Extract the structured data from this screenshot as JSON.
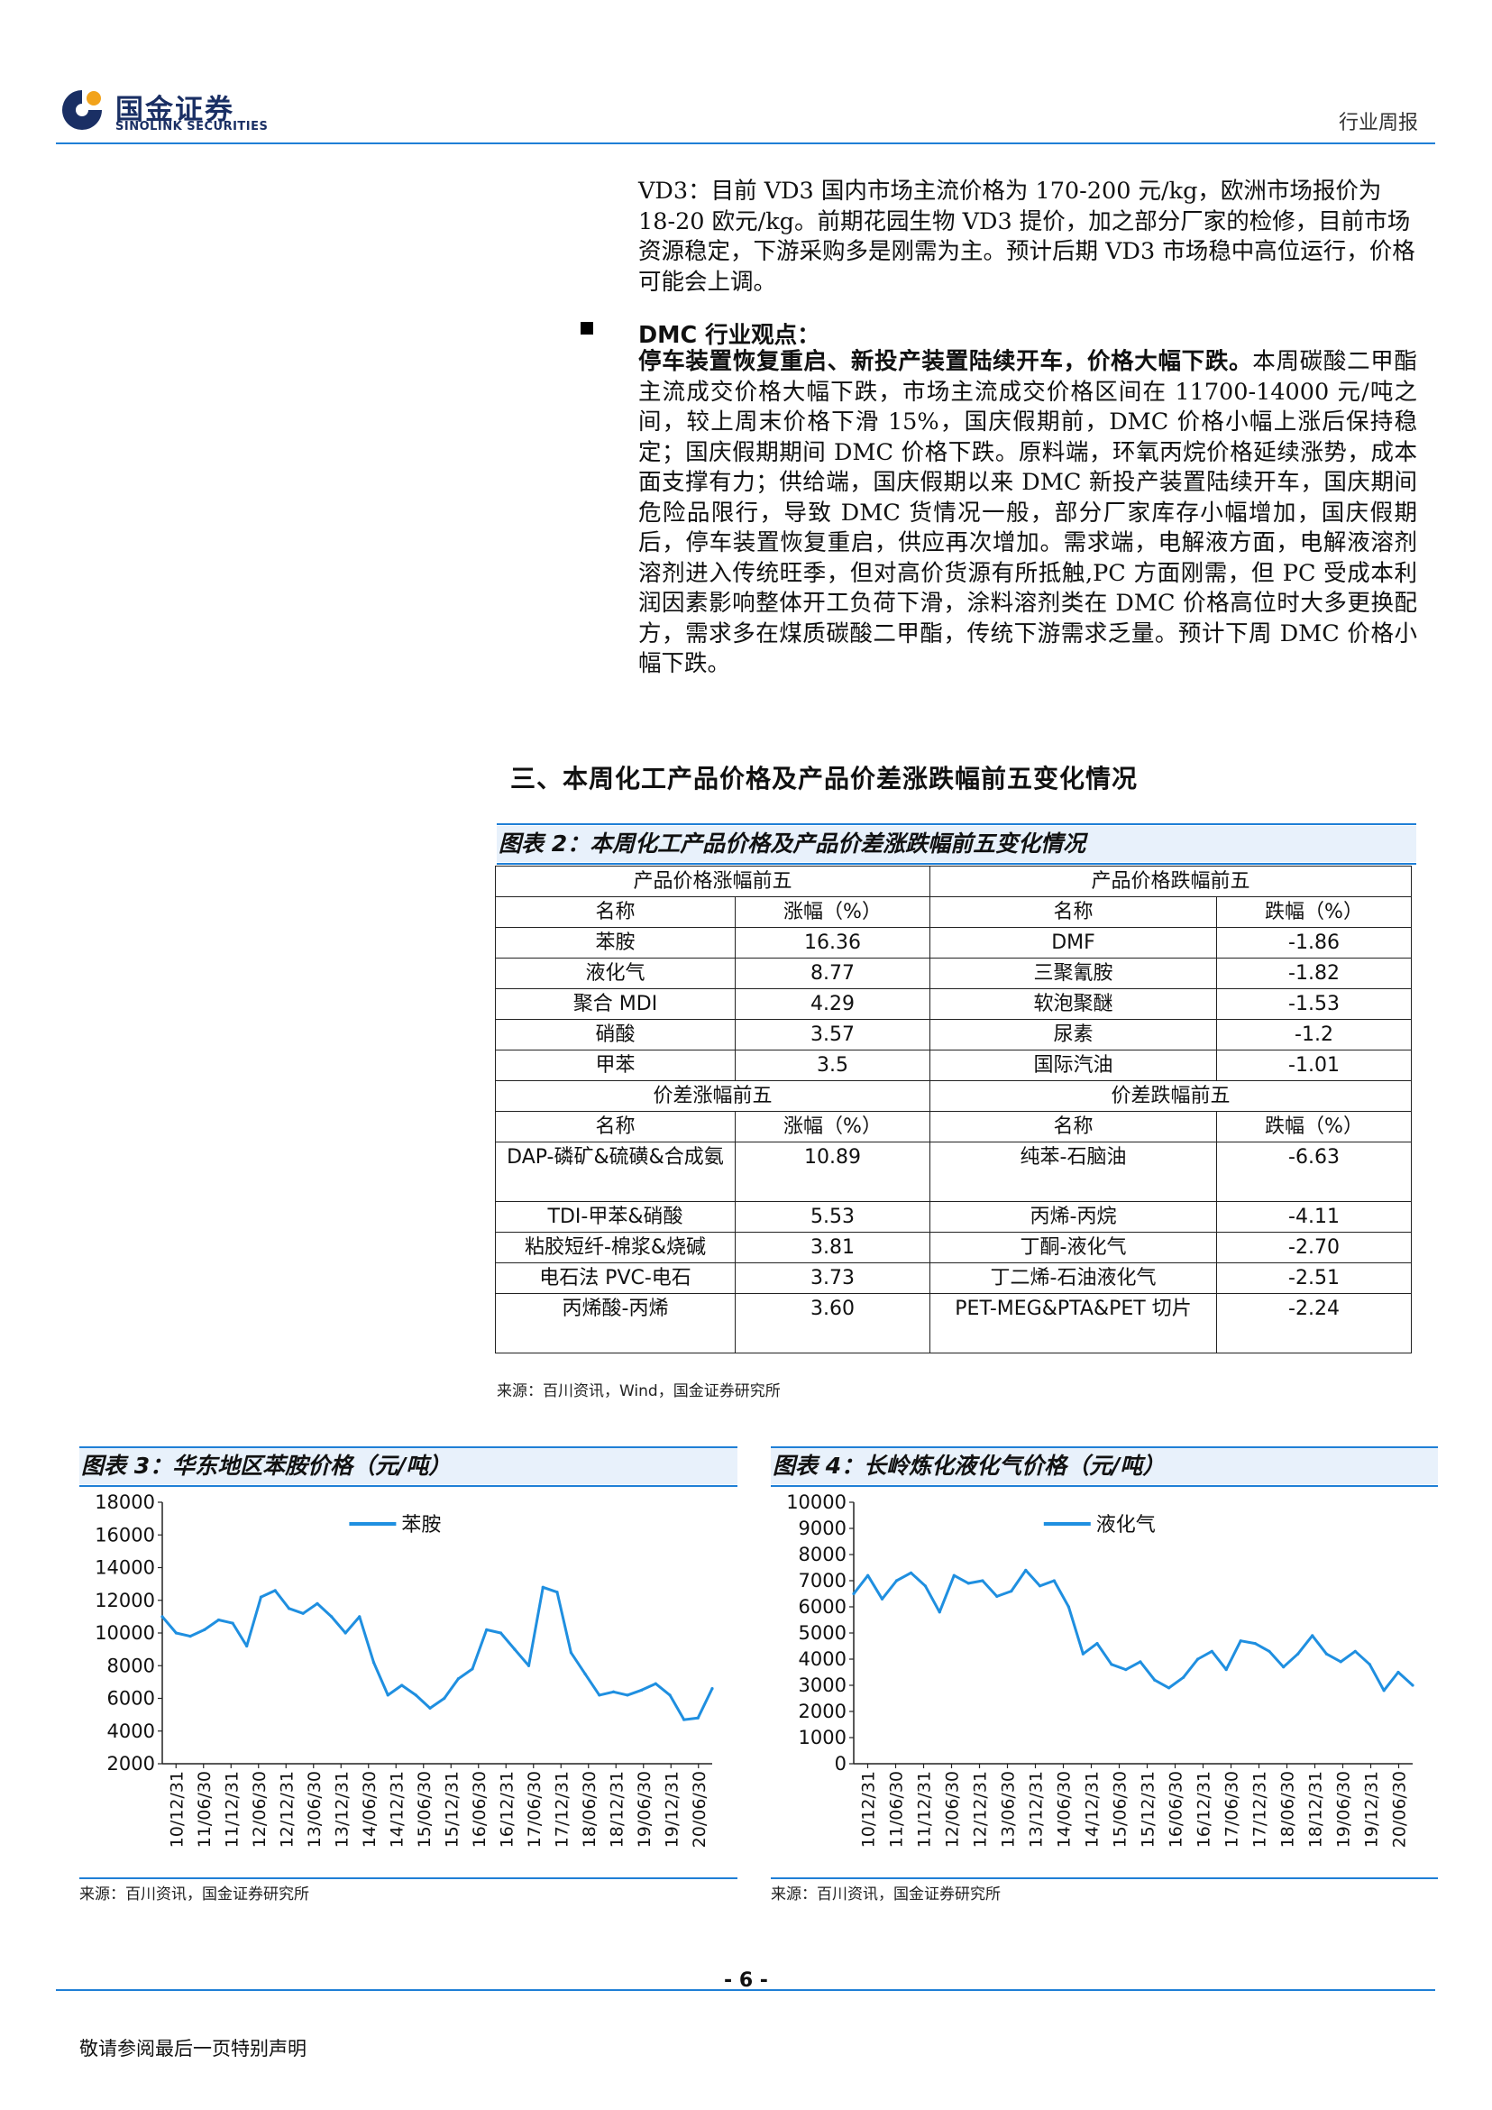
{
  "header": {
    "logo_cn": "国金证券",
    "logo_en": "SINOLINK SECURITIES",
    "report_type": "行业周报",
    "accent_color": "#1f7fd6",
    "brand_color": "#1a2f64"
  },
  "vd3": {
    "text": "VD3：目前 VD3 国内市场主流价格为 170-200 元/kg，欧洲市场报价为 18-20 欧元/kg。前期花园生物 VD3 提价，加之部分厂家的检修，目前市场资源稳定，下游采购多是刚需为主。预计后期 VD3 市场稳中高位运行，价格可能会上调。"
  },
  "dmc": {
    "heading": "DMC 行业观点：",
    "lead": "停车装置恢复重启、新投产装置陆续开车，价格大幅下跌。",
    "body": "本周碳酸二甲酯主流成交价格大幅下跌，市场主流成交价格区间在 11700-14000 元/吨之间，较上周末价格下滑 15%，国庆假期前，DMC 价格小幅上涨后保持稳定；国庆假期期间 DMC 价格下跌。原料端，环氧丙烷价格延续涨势，成本面支撑有力；供给端，国庆假期以来 DMC 新投产装置陆续开车，国庆期间危险品限行，导致 DMC 货情况一般，部分厂家库存小幅增加，国庆假期后，停车装置恢复重启，供应再次增加。需求端，电解液方面，电解液溶剂溶剂进入传统旺季，但对高价货源有所抵触,PC 方面刚需，但 PC 受成本利润因素影响整体开工负荷下滑，涂料溶剂类在 DMC 价格高位时大多更换配方，需求多在煤质碳酸二甲酯，传统下游需求乏量。预计下周 DMC 价格小幅下跌。"
  },
  "section_title": "三、本周化工产品价格及产品价差涨跌幅前五变化情况",
  "fig2": {
    "title": "图表 2：本周化工产品价格及产品价差涨跌幅前五变化情况",
    "price_up_header": "产品价格涨幅前五",
    "price_down_header": "产品价格跌幅前五",
    "spread_up_header": "价差涨幅前五",
    "spread_down_header": "价差跌幅前五",
    "col_name": "名称",
    "col_up": "涨幅（%）",
    "col_down": "跌幅（%）",
    "price_rows": [
      {
        "up_name": "苯胺",
        "up_val": "16.36",
        "down_name": "DMF",
        "down_val": "-1.86"
      },
      {
        "up_name": "液化气",
        "up_val": "8.77",
        "down_name": "三聚氰胺",
        "down_val": "-1.82"
      },
      {
        "up_name": "聚合 MDI",
        "up_val": "4.29",
        "down_name": "软泡聚醚",
        "down_val": "-1.53"
      },
      {
        "up_name": "硝酸",
        "up_val": "3.57",
        "down_name": "尿素",
        "down_val": "-1.2"
      },
      {
        "up_name": "甲苯",
        "up_val": "3.5",
        "down_name": "国际汽油",
        "down_val": "-1.01"
      }
    ],
    "spread_rows": [
      {
        "up_name": "DAP-磷矿&硫磺&合成氨",
        "up_val": "10.89",
        "down_name": "纯苯-石脑油",
        "down_val": "-6.63"
      },
      {
        "up_name": "TDI-甲苯&硝酸",
        "up_val": "5.53",
        "down_name": "丙烯-丙烷",
        "down_val": "-4.11"
      },
      {
        "up_name": "粘胶短纤-棉浆&烧碱",
        "up_val": "3.81",
        "down_name": "丁酮-液化气",
        "down_val": "-2.70"
      },
      {
        "up_name": "电石法 PVC-电石",
        "up_val": "3.73",
        "down_name": "丁二烯-石油液化气",
        "down_val": "-2.51"
      },
      {
        "up_name": "丙烯酸-丙烯",
        "up_val": "3.60",
        "down_name": "PET-MEG&PTA&PET 切片",
        "down_val": "-2.24"
      }
    ],
    "source": "来源：百川资讯，Wind，国金证券研究所"
  },
  "fig3": {
    "title": "图表 3：华东地区苯胺价格（元/吨）",
    "source": "来源：百川资讯，国金证券研究所"
  },
  "fig4": {
    "title": "图表 4：长岭炼化液化气价格（元/吨）",
    "source": "来源：百川资讯，国金证券研究所"
  },
  "chart_data": [
    {
      "type": "line",
      "title": "图表 3：华东地区苯胺价格（元/吨）",
      "ylim": [
        2000,
        18000
      ],
      "yticks": [
        2000,
        4000,
        6000,
        8000,
        10000,
        12000,
        14000,
        16000,
        18000
      ],
      "xticks": [
        "10/12/31",
        "11/06/30",
        "11/12/31",
        "12/06/30",
        "12/12/31",
        "13/06/30",
        "13/12/31",
        "14/06/30",
        "14/12/31",
        "15/06/30",
        "15/12/31",
        "16/06/30",
        "16/12/31",
        "17/06/30",
        "17/12/31",
        "18/06/30",
        "18/12/31",
        "19/06/30",
        "19/12/31",
        "20/06/30"
      ],
      "legend_position": "top-center",
      "series": [
        {
          "name": "苯胺",
          "color": "#1f8fe0",
          "x": [
            "2010-12-31",
            "2011-03-31",
            "2011-06-30",
            "2011-09-30",
            "2011-12-31",
            "2012-03-31",
            "2012-06-30",
            "2012-09-30",
            "2012-12-31",
            "2013-03-31",
            "2013-06-30",
            "2013-09-30",
            "2013-12-31",
            "2014-03-31",
            "2014-06-30",
            "2014-09-30",
            "2014-12-31",
            "2015-03-31",
            "2015-06-30",
            "2015-09-30",
            "2015-12-31",
            "2016-03-31",
            "2016-06-30",
            "2016-09-30",
            "2016-12-31",
            "2017-03-31",
            "2017-06-30",
            "2017-09-30",
            "2017-12-31",
            "2018-03-31",
            "2018-06-30",
            "2018-09-30",
            "2018-12-31",
            "2019-03-31",
            "2019-06-30",
            "2019-09-30",
            "2019-12-31",
            "2020-03-31",
            "2020-06-30",
            "2020-09-30"
          ],
          "values": [
            11000,
            10000,
            9800,
            10200,
            10800,
            10600,
            9200,
            12200,
            12600,
            11500,
            11200,
            11800,
            11000,
            10000,
            11000,
            8200,
            6200,
            6800,
            6200,
            5400,
            6000,
            7200,
            7800,
            10200,
            10000,
            9000,
            8000,
            12800,
            12500,
            8800,
            7500,
            6200,
            6400,
            6200,
            6500,
            6900,
            6200,
            4700,
            4800,
            6600
          ]
        }
      ]
    },
    {
      "type": "line",
      "title": "图表 4：长岭炼化液化气价格（元/吨）",
      "ylim": [
        0,
        10000
      ],
      "yticks": [
        0,
        1000,
        2000,
        3000,
        4000,
        5000,
        6000,
        7000,
        8000,
        9000,
        10000
      ],
      "xticks": [
        "10/12/31",
        "11/06/30",
        "11/12/31",
        "12/06/30",
        "12/12/31",
        "13/06/30",
        "13/12/31",
        "14/06/30",
        "14/12/31",
        "15/06/30",
        "15/12/31",
        "16/06/30",
        "16/12/31",
        "17/06/30",
        "17/12/31",
        "18/06/30",
        "18/12/31",
        "19/06/30",
        "19/12/31",
        "20/06/30"
      ],
      "legend_position": "top-center",
      "series": [
        {
          "name": "液化气",
          "color": "#1f8fe0",
          "x": [
            "2010-12-31",
            "2011-03-31",
            "2011-06-30",
            "2011-09-30",
            "2011-12-31",
            "2012-03-31",
            "2012-06-30",
            "2012-09-30",
            "2012-12-31",
            "2013-03-31",
            "2013-06-30",
            "2013-09-30",
            "2013-12-31",
            "2014-03-31",
            "2014-06-30",
            "2014-09-30",
            "2014-12-31",
            "2015-03-31",
            "2015-06-30",
            "2015-09-30",
            "2015-12-31",
            "2016-03-31",
            "2016-06-30",
            "2016-09-30",
            "2016-12-31",
            "2017-03-31",
            "2017-06-30",
            "2017-09-30",
            "2017-12-31",
            "2018-03-31",
            "2018-06-30",
            "2018-09-30",
            "2018-12-31",
            "2019-03-31",
            "2019-06-30",
            "2019-09-30",
            "2019-12-31",
            "2020-03-31",
            "2020-06-30",
            "2020-09-30"
          ],
          "values": [
            6500,
            7200,
            6300,
            7000,
            7300,
            6800,
            5800,
            7200,
            6900,
            7000,
            6400,
            6600,
            7400,
            6800,
            7000,
            6000,
            4200,
            4600,
            3800,
            3600,
            3900,
            3200,
            2900,
            3300,
            4000,
            4300,
            3600,
            4700,
            4600,
            4300,
            3700,
            4200,
            4900,
            4200,
            3900,
            4300,
            3800,
            2800,
            3500,
            3000
          ]
        }
      ]
    }
  ]
}
